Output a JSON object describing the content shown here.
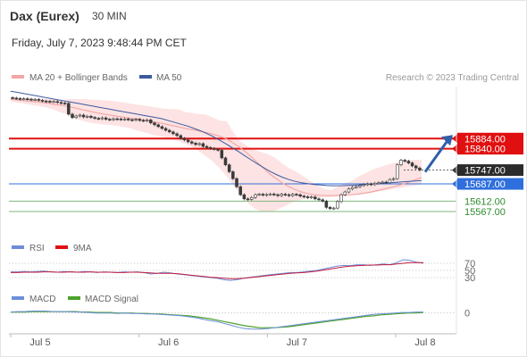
{
  "header": {
    "instrument": "Dax (Eurex)",
    "timeframe": "30 MIN",
    "datetime": "Friday, July 7, 2023 9:48:44 PM CET"
  },
  "legend": {
    "ma20": "MA 20 + Bollinger Bands",
    "ma50": "MA 50",
    "copyright": "Research © 2023 Trading Central",
    "rsi": "RSI",
    "rsi_ma": "9MA",
    "macd": "MACD",
    "macd_signal": "MACD Signal"
  },
  "colors": {
    "candle_up": "#3a3a3a",
    "candle_down": "#3a3a3a",
    "bollinger_fill": "#fde3e3",
    "ma20": "#f2a7a7",
    "ma50": "#3d5a9e",
    "resistance": "#e01010",
    "pivot": "#2f6fdd",
    "support": "#7fb77f",
    "support_text": "#2f8a2f",
    "arrow": "#2f5fa8",
    "rsi": "#6d8ed8",
    "rsi_ma": "#c21b3f",
    "macd": "#6d8ed8",
    "macd_signal": "#4ca32a"
  },
  "chart_data": [
    {
      "type": "candlestick",
      "title": "Dax (Eurex)",
      "x_tick_labels": [
        "Jul 5",
        "Jul 6",
        "Jul 7",
        "Jul 8"
      ],
      "ylim": [
        15470,
        16110
      ],
      "levels": [
        {
          "name": "resistance",
          "value": 15884.0,
          "label": "15884.00"
        },
        {
          "name": "resistance",
          "value": 15840.0,
          "label": "15840.00"
        },
        {
          "name": "last",
          "value": 15747.0,
          "label": "15747.00"
        },
        {
          "name": "pivot",
          "value": 15687.0,
          "label": "15687.00"
        },
        {
          "name": "support",
          "value": 15612.0,
          "label": "15612.00"
        },
        {
          "name": "support",
          "value": 15567.0,
          "label": "15567.00"
        }
      ],
      "close": [
        16060,
        16058,
        16056,
        16057,
        16055,
        16053,
        16054,
        16050,
        16047,
        16046,
        16044,
        16045,
        16041,
        16038,
        16037,
        15990,
        15975,
        15982,
        15986,
        15978,
        15981,
        15976,
        15972,
        15970,
        15974,
        15968,
        15966,
        15970,
        15969,
        15967,
        15969,
        15966,
        15964,
        15968,
        15963,
        15962,
        15965,
        15952,
        15944,
        15936,
        15928,
        15920,
        15913,
        15905,
        15897,
        15885,
        15878,
        15870,
        15864,
        15858,
        15862,
        15850,
        15845,
        15841,
        15837,
        15833,
        15800,
        15770,
        15740,
        15710,
        15675,
        15640,
        15622,
        15620,
        15628,
        15640,
        15642,
        15638,
        15641,
        15643,
        15640,
        15636,
        15642,
        15640,
        15636,
        15642,
        15640,
        15634,
        15631,
        15627,
        15630,
        15622,
        15618,
        15612,
        15585,
        15580,
        15582,
        15610,
        15640,
        15652,
        15665,
        15672,
        15675,
        15680,
        15684,
        15687,
        15684,
        15690,
        15692,
        15695,
        15692,
        15706,
        15710,
        15770,
        15790,
        15786,
        15778,
        15765,
        15756,
        15747
      ],
      "ma20": [
        16055,
        16052,
        16049,
        16046,
        16044,
        16041,
        16037,
        16032,
        16029,
        16024,
        16018,
        16012,
        16006,
        16000,
        15994,
        15989,
        15985,
        15980,
        15976,
        15972,
        15969,
        15965,
        15960,
        15955,
        15950,
        15944,
        15938,
        15932,
        15926,
        15921,
        15916,
        15910,
        15903,
        15895,
        15885,
        15868,
        15850,
        15830,
        15805,
        15780,
        15755,
        15730,
        15710,
        15690,
        15675,
        15662,
        15652,
        15645,
        15640,
        15637,
        15636,
        15636,
        15637,
        15638,
        15640,
        15643,
        15647,
        15652,
        15658,
        15664,
        15671,
        15678,
        15686,
        15695,
        15705,
        15715
      ],
      "ma50": [
        16090,
        16085,
        16080,
        16075,
        16070,
        16065,
        16060,
        16055,
        16050,
        16045,
        16040,
        16035,
        16030,
        16025,
        16020,
        16015,
        16010,
        16005,
        16000,
        15995,
        15990,
        15985,
        15980,
        15975,
        15970,
        15962,
        15954,
        15946,
        15938,
        15928,
        15918,
        15906,
        15893,
        15878,
        15862,
        15845,
        15828,
        15810,
        15792,
        15775,
        15758,
        15742,
        15728,
        15716,
        15706,
        15698,
        15692,
        15688,
        15684,
        15682,
        15680,
        15679,
        15679,
        15680,
        15681,
        15682,
        15684,
        15686,
        15688,
        15690,
        15692,
        15694,
        15696,
        15698,
        15700,
        15702
      ],
      "bollinger_upper": [
        16062,
        16062,
        16061,
        16060,
        16058,
        16056,
        16055,
        16052,
        16055,
        16056,
        16056,
        16055,
        16053,
        16051,
        16049,
        16046,
        16042,
        16037,
        16032,
        16028,
        16024,
        16019,
        16014,
        16012,
        16012,
        16000,
        15995,
        15990,
        15989,
        15976,
        15962,
        15960,
        15910,
        15872,
        15850,
        15835,
        15825,
        15815,
        15800,
        15775,
        15755,
        15740,
        15720,
        15700,
        15680,
        15665,
        15660,
        15675,
        15690,
        15700,
        15720,
        15735,
        15750,
        15760,
        15770,
        15778,
        15785,
        15790,
        15792,
        15792
      ],
      "bollinger_lower": [
        16045,
        16040,
        16036,
        16030,
        16026,
        16020,
        16012,
        16000,
        15990,
        15976,
        15964,
        15956,
        15950,
        15946,
        15944,
        15940,
        15936,
        15930,
        15920,
        15912,
        15904,
        15897,
        15890,
        15882,
        15874,
        15862,
        15848,
        15830,
        15808,
        15785,
        15755,
        15720,
        15680,
        15640,
        15605,
        15580,
        15567,
        15565,
        15572,
        15585,
        15600,
        15612,
        15620,
        15625,
        15627,
        15628,
        15630,
        15633,
        15638,
        15640,
        15642,
        15645,
        15650,
        15655,
        15660,
        15665,
        15670,
        15675,
        15680,
        15686
      ]
    },
    {
      "type": "line",
      "name": "RSI",
      "levels": [
        70,
        50,
        30
      ],
      "ylim": [
        0,
        100
      ],
      "rsi": [
        46,
        46,
        47,
        46,
        47,
        48,
        46,
        45,
        47,
        46,
        45,
        47,
        46,
        44,
        46,
        45,
        44,
        46,
        45,
        46,
        44,
        40,
        42,
        45,
        43,
        40,
        38,
        36,
        34,
        32,
        30,
        28,
        24,
        22,
        24,
        28,
        31,
        33,
        36,
        38,
        40,
        42,
        44,
        44,
        46,
        48,
        50,
        54,
        58,
        62,
        64,
        63,
        66,
        66,
        64,
        66,
        68,
        66,
        72,
        80,
        78,
        73,
        70
      ],
      "rsi_ma": [
        44,
        44,
        45,
        45,
        45,
        46,
        46,
        45,
        45,
        46,
        45,
        45,
        46,
        45,
        45,
        45,
        44,
        44,
        45,
        45,
        44,
        43,
        42,
        42,
        42,
        41,
        39,
        37,
        35,
        33,
        31,
        30,
        28,
        27,
        27,
        28,
        30,
        32,
        34,
        36,
        38,
        40,
        42,
        43,
        44,
        46,
        48,
        51,
        54,
        57,
        60,
        62,
        63,
        64,
        65,
        65,
        66,
        66,
        68,
        70,
        72,
        72,
        72
      ]
    },
    {
      "type": "line",
      "name": "MACD",
      "levels": [
        0
      ],
      "ylim": [
        -40,
        20
      ],
      "macd": [
        2,
        3,
        3,
        4,
        4,
        4,
        3,
        3,
        3,
        2,
        2,
        1,
        0,
        0,
        0,
        -1,
        0,
        -1,
        -1,
        -2,
        -2,
        -3,
        -4,
        -5,
        -6,
        -8,
        -10,
        -13,
        -16,
        -18,
        -22,
        -26,
        -30,
        -33,
        -34,
        -34,
        -33,
        -31,
        -29,
        -27,
        -25,
        -23,
        -21,
        -19,
        -17,
        -15,
        -13,
        -11,
        -9,
        -7,
        -5,
        -3,
        -2,
        -1,
        0,
        1,
        1,
        2,
        2
      ],
      "macd_signal": [
        2,
        2,
        2,
        3,
        3,
        3,
        3,
        3,
        3,
        3,
        2,
        2,
        1,
        1,
        1,
        0,
        0,
        0,
        -1,
        -1,
        -2,
        -2,
        -3,
        -4,
        -5,
        -6,
        -8,
        -10,
        -12,
        -15,
        -18,
        -21,
        -24,
        -27,
        -29,
        -31,
        -31,
        -31,
        -30,
        -29,
        -27,
        -25,
        -23,
        -21,
        -19,
        -17,
        -15,
        -13,
        -11,
        -9,
        -7,
        -6,
        -4,
        -3,
        -2,
        -1,
        0,
        0,
        1
      ]
    }
  ]
}
